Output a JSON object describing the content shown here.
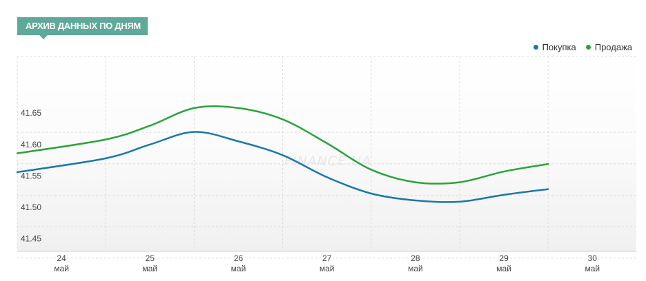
{
  "header": {
    "title": "АРХИВ ДАННЫХ ПО ДНЯМ"
  },
  "watermark": "FINANCE.UA",
  "colors": {
    "buy": "#1a78a8",
    "sell": "#2aa33a",
    "tab": "#5fa99a"
  },
  "chart_data": {
    "type": "line",
    "title": "",
    "xlabel": "",
    "ylabel": "",
    "ylim": [
      41.43,
      41.74
    ],
    "y_ticks": [
      "41.45",
      "41.50",
      "41.55",
      "41.60",
      "41.65"
    ],
    "y_tick_values": [
      41.45,
      41.5,
      41.55,
      41.6,
      41.65
    ],
    "categories": [
      {
        "day": "24",
        "month": "май"
      },
      {
        "day": "25",
        "month": "май"
      },
      {
        "day": "26",
        "month": "май"
      },
      {
        "day": "27",
        "month": "май"
      },
      {
        "day": "28",
        "month": "май"
      },
      {
        "day": "29",
        "month": "май"
      },
      {
        "day": "30",
        "month": "май"
      }
    ],
    "grid": true,
    "legend": "top-right",
    "series": [
      {
        "name": "Покупка",
        "color": "#1a78a8",
        "x": [
          24,
          24.5,
          25,
          25.5,
          26,
          26.5,
          27,
          27.5,
          28,
          28.5,
          29,
          29.5
        ],
        "values": [
          41.556,
          41.578,
          41.6,
          41.62,
          41.605,
          41.583,
          41.548,
          41.522,
          41.511,
          41.509,
          41.52,
          41.529
        ]
      },
      {
        "name": "Продажа",
        "color": "#2aa33a",
        "x": [
          24,
          24.5,
          25,
          25.5,
          26,
          26.5,
          27,
          27.5,
          28,
          28.5,
          29,
          29.5
        ],
        "values": [
          41.586,
          41.608,
          41.63,
          41.658,
          41.658,
          41.64,
          41.602,
          41.56,
          41.54,
          41.54,
          41.557,
          41.569
        ]
      }
    ]
  }
}
